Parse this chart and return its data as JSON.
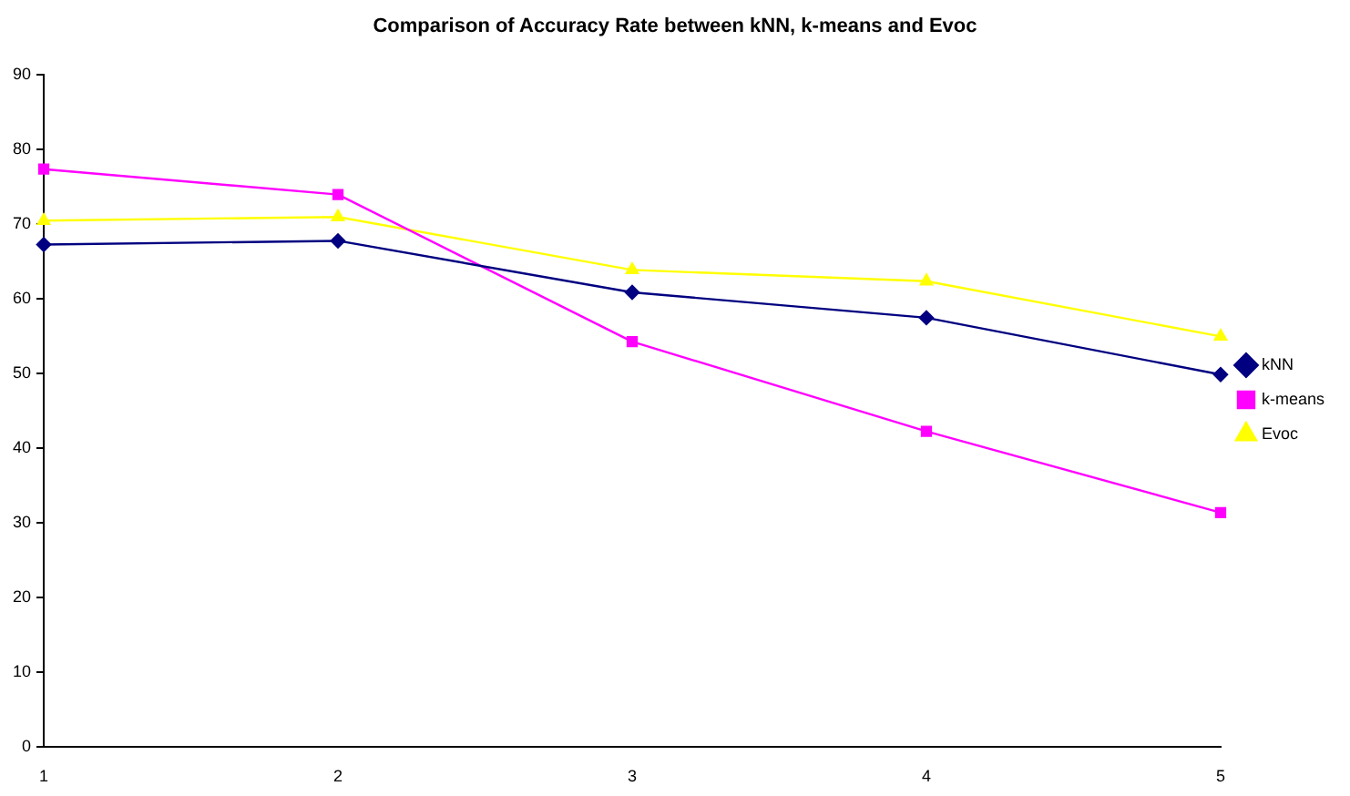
{
  "chart_data": {
    "type": "line",
    "title": "Comparison of Accuracy Rate between kNN, k-means and Evoc",
    "categories": [
      "1",
      "2",
      "3",
      "4",
      "5"
    ],
    "series": [
      {
        "name": "kNN",
        "color": "#000080",
        "marker": "diamond",
        "values": [
          67.3,
          67.8,
          60.9,
          57.5,
          49.9
        ]
      },
      {
        "name": "k-means",
        "color": "#ff00ff",
        "marker": "square",
        "values": [
          77.4,
          74,
          54.3,
          42.3,
          31.4
        ]
      },
      {
        "name": "Evoc",
        "color": "#ffff00",
        "marker": "triangle",
        "values": [
          70.5,
          71,
          63.9,
          62.4,
          55
        ]
      }
    ],
    "ylim": [
      0,
      90
    ],
    "yticks": [
      0,
      10,
      20,
      30,
      40,
      50,
      60,
      70,
      80,
      90
    ],
    "grid": false,
    "legend": "right"
  }
}
